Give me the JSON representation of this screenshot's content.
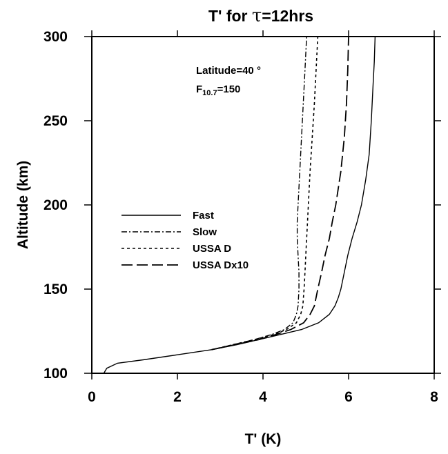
{
  "chart_data": {
    "type": "line",
    "title_prefix": "T' for ",
    "title_tau": "τ",
    "title_suffix": "=12hrs",
    "xlabel": "T' (K)",
    "ylabel": "Altitude (km)",
    "xlim": [
      0,
      8
    ],
    "ylim": [
      100,
      300
    ],
    "xticks": [
      0,
      2,
      4,
      6,
      8
    ],
    "yticks": [
      100,
      150,
      200,
      250,
      300
    ],
    "grid": false,
    "legend_placement": "center-left",
    "annotations": {
      "latitude": "Latitude=40 °",
      "f107_main": "F",
      "f107_sub": "10.7",
      "f107_value": "=150"
    },
    "series": [
      {
        "name": "Fast",
        "style": "solid",
        "points": [
          [
            0.28,
            100
          ],
          [
            0.35,
            103
          ],
          [
            0.6,
            106
          ],
          [
            1.2,
            108
          ],
          [
            2.0,
            111
          ],
          [
            2.8,
            114
          ],
          [
            3.4,
            117
          ],
          [
            3.9,
            120
          ],
          [
            4.4,
            123
          ],
          [
            4.9,
            126
          ],
          [
            5.3,
            130
          ],
          [
            5.55,
            135
          ],
          [
            5.68,
            140
          ],
          [
            5.76,
            145
          ],
          [
            5.82,
            150
          ],
          [
            5.9,
            160
          ],
          [
            5.98,
            170
          ],
          [
            6.08,
            180
          ],
          [
            6.2,
            190
          ],
          [
            6.3,
            200
          ],
          [
            6.4,
            215
          ],
          [
            6.48,
            230
          ],
          [
            6.53,
            250
          ],
          [
            6.57,
            270
          ],
          [
            6.6,
            285
          ],
          [
            6.62,
            300
          ]
        ]
      },
      {
        "name": "Slow",
        "style": "dashdot",
        "points": [
          [
            2.8,
            114
          ],
          [
            3.3,
            117
          ],
          [
            3.8,
            120
          ],
          [
            4.2,
            123
          ],
          [
            4.5,
            126
          ],
          [
            4.7,
            130
          ],
          [
            4.78,
            135
          ],
          [
            4.82,
            140
          ],
          [
            4.84,
            150
          ],
          [
            4.84,
            160
          ],
          [
            4.82,
            170
          ],
          [
            4.8,
            180
          ],
          [
            4.8,
            190
          ],
          [
            4.82,
            200
          ],
          [
            4.86,
            220
          ],
          [
            4.9,
            240
          ],
          [
            4.94,
            260
          ],
          [
            4.98,
            280
          ],
          [
            5.02,
            300
          ]
        ]
      },
      {
        "name": "USSA D",
        "style": "dotted",
        "points": [
          [
            2.8,
            114
          ],
          [
            3.3,
            117
          ],
          [
            3.8,
            120
          ],
          [
            4.25,
            123
          ],
          [
            4.55,
            126
          ],
          [
            4.78,
            130
          ],
          [
            4.88,
            135
          ],
          [
            4.93,
            140
          ],
          [
            4.96,
            150
          ],
          [
            4.98,
            160
          ],
          [
            5.0,
            170
          ],
          [
            5.02,
            180
          ],
          [
            5.04,
            190
          ],
          [
            5.06,
            200
          ],
          [
            5.1,
            220
          ],
          [
            5.15,
            240
          ],
          [
            5.2,
            260
          ],
          [
            5.24,
            280
          ],
          [
            5.28,
            300
          ]
        ]
      },
      {
        "name": "USSA Dx10",
        "style": "longdash",
        "points": [
          [
            2.8,
            114
          ],
          [
            3.35,
            117
          ],
          [
            3.9,
            120
          ],
          [
            4.3,
            123
          ],
          [
            4.65,
            126
          ],
          [
            4.95,
            130
          ],
          [
            5.1,
            135
          ],
          [
            5.2,
            140
          ],
          [
            5.28,
            150
          ],
          [
            5.37,
            160
          ],
          [
            5.45,
            170
          ],
          [
            5.55,
            180
          ],
          [
            5.62,
            190
          ],
          [
            5.7,
            200
          ],
          [
            5.82,
            220
          ],
          [
            5.9,
            240
          ],
          [
            5.95,
            260
          ],
          [
            5.98,
            280
          ],
          [
            6.0,
            300
          ]
        ]
      }
    ]
  }
}
